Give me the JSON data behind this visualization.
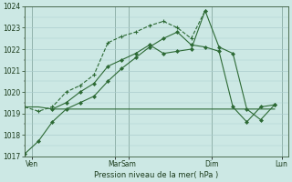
{
  "background_color": "#cce8e4",
  "grid_color": "#aacccc",
  "line_color": "#2d6a35",
  "xlabel": "Pression niveau de la mer( hPa )",
  "ylim": [
    1017,
    1024
  ],
  "yticks": [
    1017,
    1018,
    1019,
    1020,
    1021,
    1022,
    1023,
    1024
  ],
  "xlim": [
    0,
    19
  ],
  "xtick_positions": [
    0.5,
    6.5,
    7.5,
    13.5,
    18.5
  ],
  "xtick_labels": [
    "Ven",
    "Mar",
    "Sam",
    "Dim",
    "Lun"
  ],
  "vline_positions": [
    0.5,
    6.5,
    7.5,
    13.5,
    18.5
  ],
  "series1_x": [
    0,
    1,
    2,
    3,
    4,
    5,
    6,
    7,
    8,
    9,
    10,
    11,
    12,
    13,
    14,
    15,
    16,
    17,
    18
  ],
  "series1_y": [
    1017.1,
    1017.7,
    1018.6,
    1019.2,
    1019.5,
    1019.8,
    1020.5,
    1021.1,
    1021.6,
    1022.1,
    1022.5,
    1022.8,
    1022.2,
    1022.1,
    1021.9,
    1019.3,
    1018.6,
    1019.3,
    1019.4
  ],
  "series2_x": [
    0,
    1,
    2,
    3,
    4,
    5,
    6,
    7,
    8,
    9,
    10,
    11,
    12,
    13,
    14,
    15,
    16,
    17,
    18
  ],
  "series2_y": [
    1019.3,
    1019.3,
    1019.2,
    1019.2,
    1019.2,
    1019.2,
    1019.2,
    1019.2,
    1019.2,
    1019.2,
    1019.2,
    1019.2,
    1019.2,
    1019.2,
    1019.2,
    1019.2,
    1019.2,
    1019.2,
    1019.2
  ],
  "series3_x": [
    0,
    1,
    2,
    3,
    4,
    5,
    6,
    7,
    8,
    9,
    10,
    11,
    12,
    13
  ],
  "series3_y": [
    1019.3,
    1019.1,
    1019.3,
    1020.0,
    1020.3,
    1020.8,
    1022.3,
    1022.6,
    1022.8,
    1023.1,
    1023.3,
    1023.0,
    1022.5,
    1023.8
  ],
  "series4_x": [
    2,
    3,
    4,
    5,
    6,
    7,
    8,
    9,
    10,
    11,
    12,
    13,
    14,
    15,
    16,
    17,
    18
  ],
  "series4_y": [
    1019.2,
    1019.5,
    1020.0,
    1020.4,
    1021.2,
    1021.5,
    1021.8,
    1022.2,
    1021.8,
    1021.9,
    1022.0,
    1023.8,
    1022.1,
    1021.8,
    1019.2,
    1018.7,
    1019.4
  ]
}
